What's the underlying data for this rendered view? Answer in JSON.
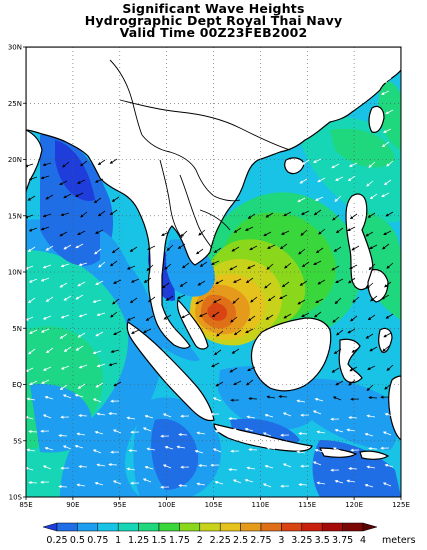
{
  "title": {
    "line1": "Significant Wave Heights",
    "line2": "Hydrographic Dept Royal Thai Navy",
    "line3": "Valid Time 00Z23FEB2002"
  },
  "map": {
    "lon_range": [
      85,
      125
    ],
    "lat_range": [
      -10,
      30
    ],
    "lon_ticks": [
      "85E",
      "90E",
      "95E",
      "100E",
      "105E",
      "110E",
      "115E",
      "120E",
      "125E"
    ],
    "lat_ticks": [
      "30N",
      "25N",
      "20N",
      "15N",
      "10N",
      "5N",
      "EQ",
      "5S",
      "10S"
    ],
    "graticule": "dotted",
    "features": [
      "coastlines",
      "country-borders",
      "wind-arrows",
      "wave-height-shading"
    ]
  },
  "colorbar": {
    "levels": [
      "0.25",
      "0.5",
      "0.75",
      "1",
      "1.25",
      "1.5",
      "1.75",
      "2",
      "2.25",
      "2.5",
      "2.75",
      "3",
      "3.25",
      "3.5",
      "3.75",
      "4"
    ],
    "units": "meters",
    "colors": [
      "#1f3ddb",
      "#1f6ee6",
      "#1e9ef0",
      "#19c3e6",
      "#17d6b6",
      "#1fd77c",
      "#3ad73c",
      "#8ad71c",
      "#c8d21a",
      "#e6c21c",
      "#e69a1c",
      "#e07018",
      "#d84412",
      "#c8200c",
      "#a40a08",
      "#7a0606",
      "#5a0404"
    ]
  }
}
